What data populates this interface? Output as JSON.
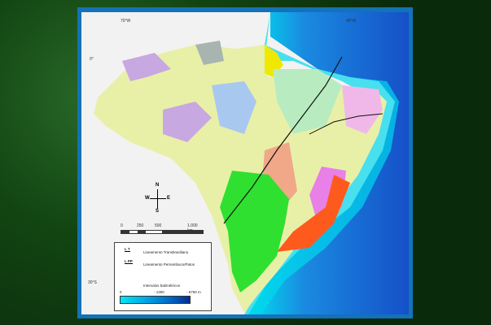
{
  "map": {
    "graticule": {
      "lon_west": "70°W",
      "lon_east": "40°W",
      "lat_north": "0°",
      "lat_south": "30°S"
    },
    "compass": {
      "n": "N",
      "s": "S",
      "e": "E",
      "w": "W"
    },
    "scale": {
      "ticks": [
        "0",
        "250",
        "500",
        "1.000 km"
      ]
    },
    "legend": {
      "lines": [
        {
          "code": "L T",
          "label": "Lineamento Transbrasiliano"
        },
        {
          "code": "L PP",
          "label": "Lineamento Pernambuco/Patos"
        }
      ],
      "bathymetry_title": "Intervalos batimétricos",
      "bathymetry_ticks": [
        "0",
        "- 1300",
        "- 6750 m"
      ],
      "bathymetry_colors": [
        "#00e5f5",
        "#00c8ee",
        "#00aee6",
        "#0090d8",
        "#0070c8",
        "#0050b0",
        "#0a2a90"
      ]
    },
    "colors": {
      "frame": "#1372b8",
      "ocean": "#1a5fd0",
      "land_base": "#e8f0a8"
    }
  }
}
